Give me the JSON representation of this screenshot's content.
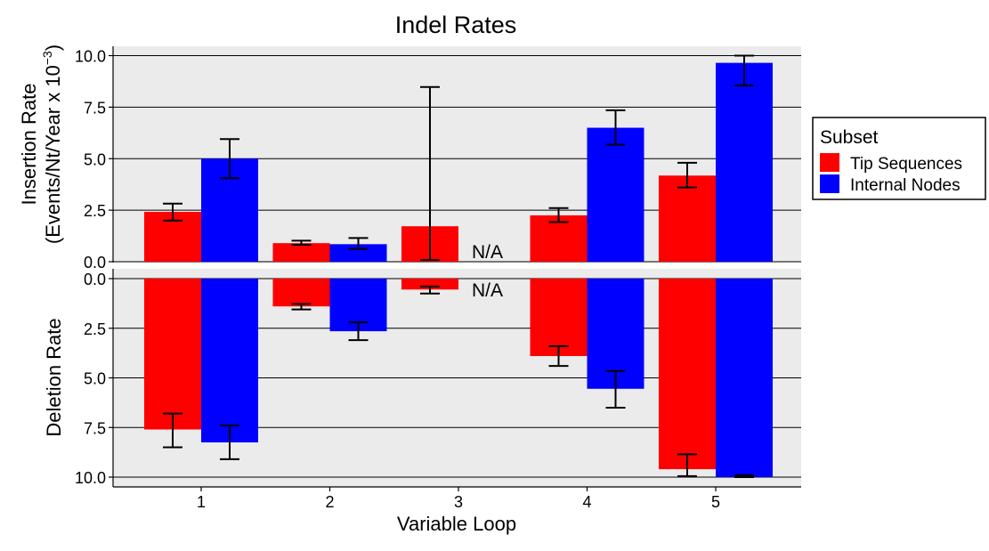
{
  "chart_data": {
    "type": "bar",
    "title": "Indel Rates",
    "xlabel": "Variable Loop",
    "categories": [
      "1",
      "2",
      "3",
      "4",
      "5"
    ],
    "legend": {
      "title": "Subset",
      "placement": "right",
      "entries": [
        "Tip Sequences",
        "Internal Nodes"
      ]
    },
    "colors": {
      "Tip Sequences": "#ff0000",
      "Internal Nodes": "#0000ff",
      "panel_bg": "#ebebeb",
      "grid": "#000000"
    },
    "grid": true,
    "panels": [
      {
        "name": "insertion",
        "ylabel_line1": "Insertion Rate",
        "ylabel_line2": "(Events/Nt/Year x  10",
        "ylabel_exp": "−3",
        "ylabel_close": ")",
        "ylim": [
          0,
          10.5
        ],
        "reversed": false,
        "ticks": [
          "0.0",
          "2.5",
          "5.0",
          "7.5",
          "10.0"
        ],
        "tick_values": [
          0,
          2.5,
          5,
          7.5,
          10
        ],
        "series": [
          {
            "name": "Tip Sequences",
            "values": [
              2.42,
              0.9,
              1.72,
              2.25,
              4.18
            ],
            "err_low": [
              2.0,
              0.82,
              0.08,
              1.92,
              3.6
            ],
            "err_high": [
              2.82,
              1.02,
              8.48,
              2.6,
              4.8
            ]
          },
          {
            "name": "Internal Nodes",
            "values": [
              5.0,
              0.85,
              null,
              6.5,
              9.65
            ],
            "err_low": [
              4.05,
              0.62,
              null,
              5.68,
              8.55
            ],
            "err_high": [
              5.95,
              1.15,
              null,
              7.35,
              10.0
            ]
          }
        ],
        "annotation": {
          "text": "N/A",
          "category": "3",
          "series": "Internal Nodes"
        }
      },
      {
        "name": "deletion",
        "ylabel_line1": "Deletion Rate",
        "ylim": [
          0,
          10.0
        ],
        "reversed": true,
        "ticks": [
          "0.0",
          "2.5",
          "5.0",
          "7.5",
          "10.0"
        ],
        "tick_values": [
          0,
          2.5,
          5,
          7.5,
          10
        ],
        "series": [
          {
            "name": "Tip Sequences",
            "values": [
              7.6,
              1.4,
              0.55,
              3.9,
              9.6
            ],
            "err_low": [
              6.8,
              1.28,
              0.4,
              3.4,
              8.85
            ],
            "err_high": [
              8.5,
              1.55,
              0.75,
              4.4,
              9.95
            ]
          },
          {
            "name": "Internal Nodes",
            "values": [
              8.25,
              2.65,
              null,
              5.55,
              10.0
            ],
            "err_low": [
              7.4,
              2.2,
              null,
              4.65,
              9.9
            ],
            "err_high": [
              9.1,
              3.1,
              null,
              6.5,
              10.0
            ]
          }
        ],
        "annotation": {
          "text": "N/A",
          "category": "3",
          "series": "Internal Nodes"
        }
      }
    ]
  }
}
